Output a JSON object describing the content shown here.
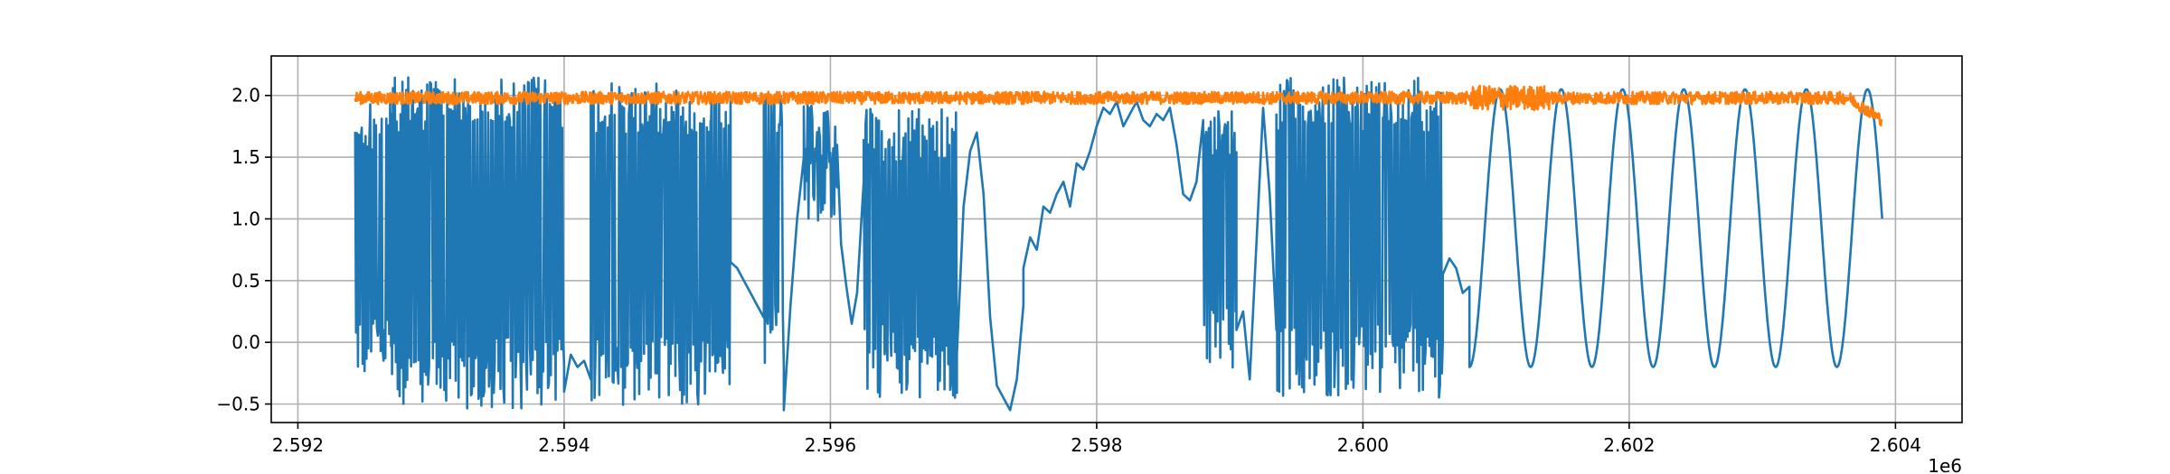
{
  "chart_data": {
    "type": "line",
    "title": "",
    "xlabel": "",
    "ylabel": "",
    "x_offset_label": "1e6",
    "xlim": [
      2.5918,
      2.6045
    ],
    "ylim": [
      -0.65,
      2.32
    ],
    "xticks": [
      2.592,
      2.594,
      2.596,
      2.598,
      2.6,
      2.602,
      2.604
    ],
    "xtick_labels": [
      "2.592",
      "2.594",
      "2.596",
      "2.598",
      "2.600",
      "2.602",
      "2.604"
    ],
    "yticks": [
      -0.5,
      0.0,
      0.5,
      1.0,
      1.5,
      2.0
    ],
    "ytick_labels": [
      "−0.5",
      "0.0",
      "0.5",
      "1.0",
      "1.5",
      "2.0"
    ],
    "grid": true,
    "legend": "none",
    "series": [
      {
        "color": "#1f77b4",
        "segments": [
          {
            "x_start": 2.59243,
            "x_end": 2.5927,
            "mode": "dense",
            "lo": -0.3,
            "hi": 2.0
          },
          {
            "x_start": 2.5927,
            "x_end": 2.594,
            "mode": "dense",
            "lo": -0.55,
            "hi": 2.15
          },
          {
            "x_start": 2.594,
            "x_end": 2.5942,
            "mode": "points",
            "points": [
              [
                2.594,
                -0.4
              ],
              [
                2.59405,
                -0.1
              ],
              [
                2.5941,
                -0.2
              ],
              [
                2.59415,
                -0.15
              ],
              [
                2.5942,
                -0.3
              ]
            ]
          },
          {
            "x_start": 2.5942,
            "x_end": 2.5951,
            "mode": "dense",
            "lo": -0.55,
            "hi": 2.1
          },
          {
            "x_start": 2.5951,
            "x_end": 2.59525,
            "mode": "dense",
            "lo": -0.4,
            "hi": 2.0
          },
          {
            "x_start": 2.59525,
            "x_end": 2.5955,
            "mode": "points",
            "points": [
              [
                2.59525,
                0.65
              ],
              [
                2.5953,
                0.6
              ],
              [
                2.59535,
                0.5
              ],
              [
                2.5954,
                0.4
              ],
              [
                2.59545,
                0.3
              ],
              [
                2.5955,
                0.2
              ]
            ]
          },
          {
            "x_start": 2.5955,
            "x_end": 2.59565,
            "mode": "dense",
            "lo": -0.2,
            "hi": 2.0
          },
          {
            "x_start": 2.59565,
            "x_end": 2.5958,
            "mode": "points",
            "points": [
              [
                2.59565,
                -0.55
              ],
              [
                2.5957,
                0.3
              ],
              [
                2.59575,
                1.0
              ],
              [
                2.5958,
                1.5
              ]
            ]
          },
          {
            "x_start": 2.5958,
            "x_end": 2.59605,
            "mode": "dense",
            "lo": 0.9,
            "hi": 1.95
          },
          {
            "x_start": 2.59605,
            "x_end": 2.59625,
            "mode": "points",
            "points": [
              [
                2.59605,
                1.6
              ],
              [
                2.59608,
                0.8
              ],
              [
                2.59612,
                0.45
              ],
              [
                2.59616,
                0.15
              ],
              [
                2.5962,
                0.4
              ],
              [
                2.59625,
                1.3
              ]
            ]
          },
          {
            "x_start": 2.59625,
            "x_end": 2.59695,
            "mode": "dense",
            "lo": -0.45,
            "hi": 1.9
          },
          {
            "x_start": 2.59695,
            "x_end": 2.59745,
            "mode": "points",
            "points": [
              [
                2.59695,
                -0.1
              ],
              [
                2.597,
                1.1
              ],
              [
                2.59705,
                1.55
              ],
              [
                2.5971,
                1.7
              ],
              [
                2.59715,
                1.2
              ],
              [
                2.5972,
                0.2
              ],
              [
                2.59725,
                -0.35
              ],
              [
                2.5973,
                -0.45
              ],
              [
                2.59735,
                -0.55
              ],
              [
                2.5974,
                -0.3
              ],
              [
                2.59745,
                0.3
              ]
            ]
          },
          {
            "x_start": 2.59745,
            "x_end": 2.5988,
            "mode": "points",
            "points": [
              [
                2.59745,
                0.6
              ],
              [
                2.5975,
                0.85
              ],
              [
                2.59755,
                0.75
              ],
              [
                2.5976,
                1.1
              ],
              [
                2.59765,
                1.05
              ],
              [
                2.5977,
                1.2
              ],
              [
                2.59775,
                1.3
              ],
              [
                2.5978,
                1.1
              ],
              [
                2.59785,
                1.45
              ],
              [
                2.5979,
                1.4
              ],
              [
                2.59795,
                1.55
              ],
              [
                2.598,
                1.75
              ],
              [
                2.59805,
                1.9
              ],
              [
                2.5981,
                1.85
              ],
              [
                2.59815,
                1.95
              ],
              [
                2.5982,
                1.75
              ],
              [
                2.59825,
                1.85
              ],
              [
                2.5983,
                1.95
              ],
              [
                2.59835,
                1.8
              ],
              [
                2.5984,
                1.75
              ],
              [
                2.59845,
                1.85
              ],
              [
                2.5985,
                1.8
              ],
              [
                2.59855,
                1.9
              ],
              [
                2.5986,
                1.6
              ],
              [
                2.59865,
                1.2
              ],
              [
                2.5987,
                1.15
              ],
              [
                2.59875,
                1.3
              ],
              [
                2.5988,
                1.8
              ]
            ]
          },
          {
            "x_start": 2.5988,
            "x_end": 2.59905,
            "mode": "dense",
            "lo": -0.3,
            "hi": 1.95
          },
          {
            "x_start": 2.59905,
            "x_end": 2.59935,
            "mode": "points",
            "points": [
              [
                2.59905,
                0.1
              ],
              [
                2.5991,
                0.25
              ],
              [
                2.59915,
                -0.3
              ],
              [
                2.5992,
                0.8
              ],
              [
                2.59925,
                1.9
              ],
              [
                2.5993,
                1.2
              ],
              [
                2.59935,
                0.1
              ]
            ]
          },
          {
            "x_start": 2.59935,
            "x_end": 2.6006,
            "mode": "dense",
            "lo": -0.45,
            "hi": 2.15
          },
          {
            "x_start": 2.6006,
            "x_end": 2.6008,
            "mode": "points",
            "points": [
              [
                2.6006,
                0.55
              ],
              [
                2.60065,
                0.68
              ],
              [
                2.6007,
                0.6
              ],
              [
                2.60075,
                0.4
              ],
              [
                2.6008,
                0.45
              ]
            ]
          }
        ],
        "oscillation": {
          "x_start": 2.6008,
          "x_end": 2.6039,
          "period": 0.00046,
          "min": -0.2,
          "max": 2.05
        }
      },
      {
        "color": "#ff7f0e",
        "x_start": 2.59243,
        "x_end": 2.6039,
        "baseline": 1.98,
        "noise": [
          {
            "x_start": 2.59243,
            "x_end": 2.6008,
            "amplitude": 0.05
          },
          {
            "x_start": 2.6008,
            "x_end": 2.6014,
            "amplitude": 0.1
          },
          {
            "x_start": 2.6014,
            "x_end": 2.6037,
            "amplitude": 0.05
          }
        ],
        "end_drop": {
          "x_start": 2.60365,
          "x_end": 2.6039,
          "to": 1.8
        }
      }
    ]
  }
}
